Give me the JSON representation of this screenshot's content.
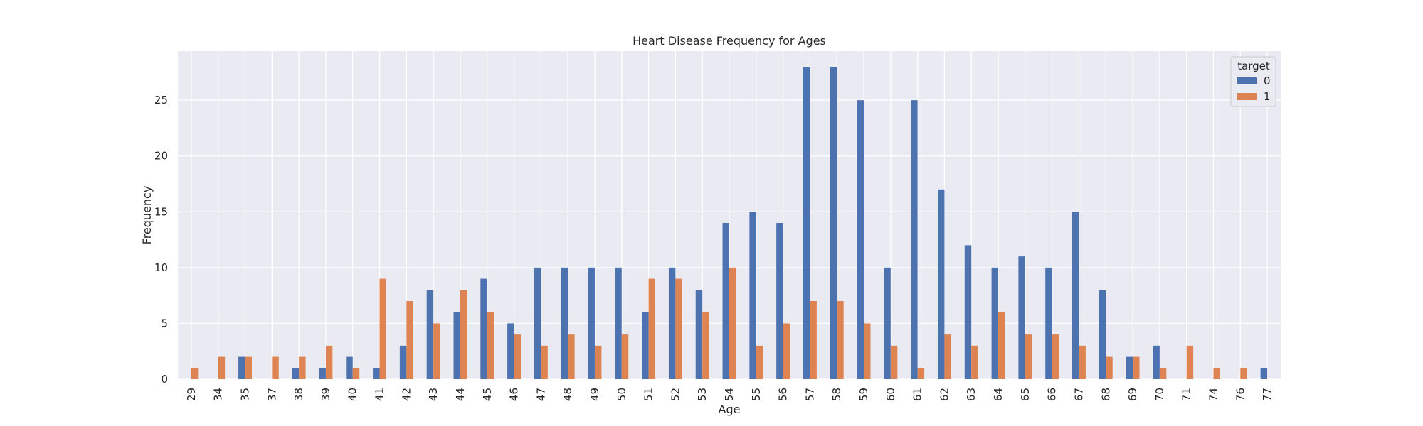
{
  "chart_data": {
    "type": "bar",
    "title": "Heart Disease Frequency for Ages",
    "xlabel": "Age",
    "ylabel": "Frequency",
    "ylim": [
      0,
      29.4
    ],
    "yticks": [
      0,
      5,
      10,
      15,
      20,
      25
    ],
    "grid": true,
    "legend": {
      "title": "target",
      "placement": "top-right"
    },
    "categories": [
      "29",
      "34",
      "35",
      "37",
      "38",
      "39",
      "40",
      "41",
      "42",
      "43",
      "44",
      "45",
      "46",
      "47",
      "48",
      "49",
      "50",
      "51",
      "52",
      "53",
      "54",
      "55",
      "56",
      "57",
      "58",
      "59",
      "60",
      "61",
      "62",
      "63",
      "64",
      "65",
      "66",
      "67",
      "68",
      "69",
      "70",
      "71",
      "74",
      "76",
      "77"
    ],
    "series": [
      {
        "name": "0",
        "color": "#4c72b0",
        "values": [
          0,
          0,
          2,
          0,
          1,
          1,
          2,
          1,
          3,
          8,
          6,
          9,
          5,
          10,
          10,
          10,
          10,
          6,
          10,
          8,
          14,
          15,
          14,
          28,
          28,
          25,
          10,
          25,
          17,
          12,
          10,
          11,
          10,
          15,
          8,
          2,
          3,
          0,
          0,
          0,
          1
        ]
      },
      {
        "name": "1",
        "color": "#dd8452",
        "values": [
          1,
          2,
          2,
          2,
          2,
          3,
          1,
          9,
          7,
          5,
          8,
          6,
          4,
          3,
          4,
          3,
          4,
          9,
          9,
          6,
          10,
          3,
          5,
          7,
          7,
          5,
          3,
          1,
          4,
          3,
          6,
          4,
          4,
          3,
          2,
          2,
          1,
          3,
          1,
          1,
          0
        ]
      }
    ]
  },
  "style": {
    "plot_background": "#eaeaf2",
    "grid_color": "#ffffff"
  }
}
